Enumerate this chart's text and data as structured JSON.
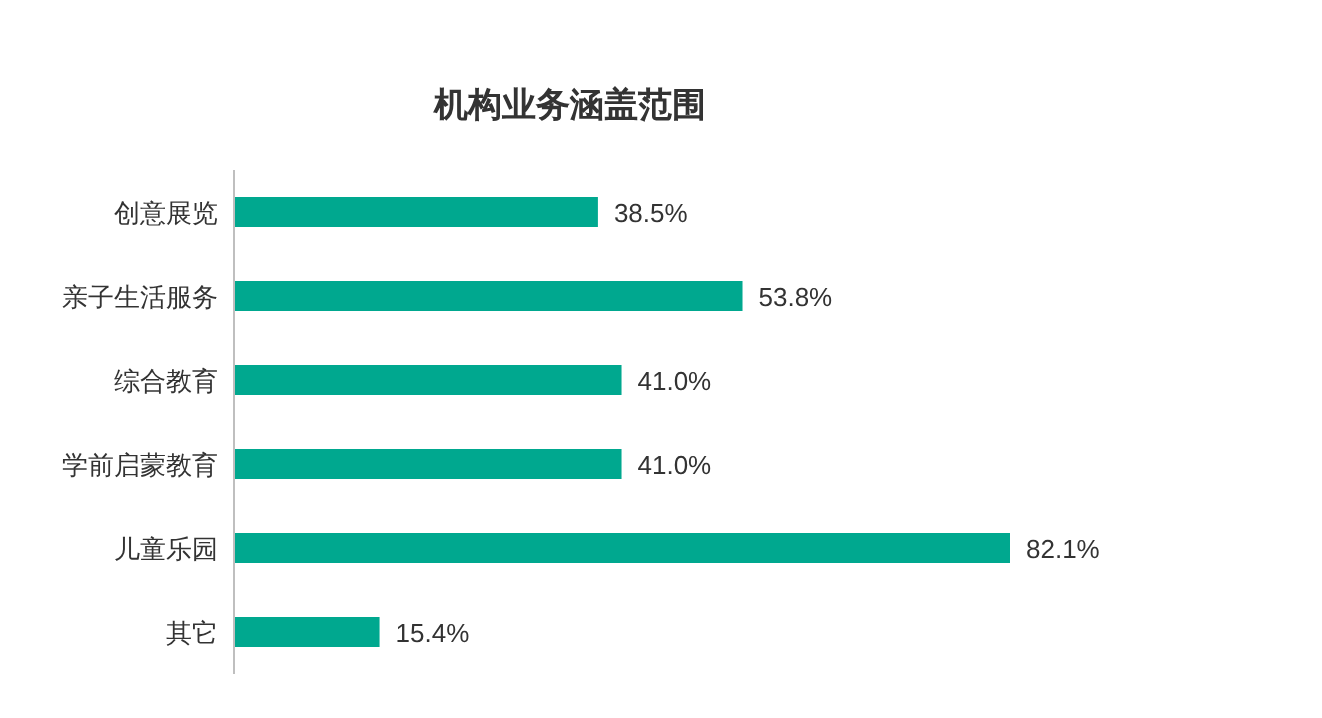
{
  "chart_data": {
    "type": "bar",
    "orientation": "horizontal",
    "title": "机构业务涵盖范围",
    "categories": [
      "创意展览",
      "亲子生活服务",
      "综合教育",
      "学前启蒙教育",
      "儿童乐园",
      "其它"
    ],
    "values": [
      38.5,
      53.8,
      41.0,
      41.0,
      82.1,
      15.4
    ],
    "value_labels": [
      "38.5%",
      "53.8%",
      "41.0%",
      "41.0%",
      "82.1%",
      "15.4%"
    ],
    "color": "#00a88f"
  }
}
